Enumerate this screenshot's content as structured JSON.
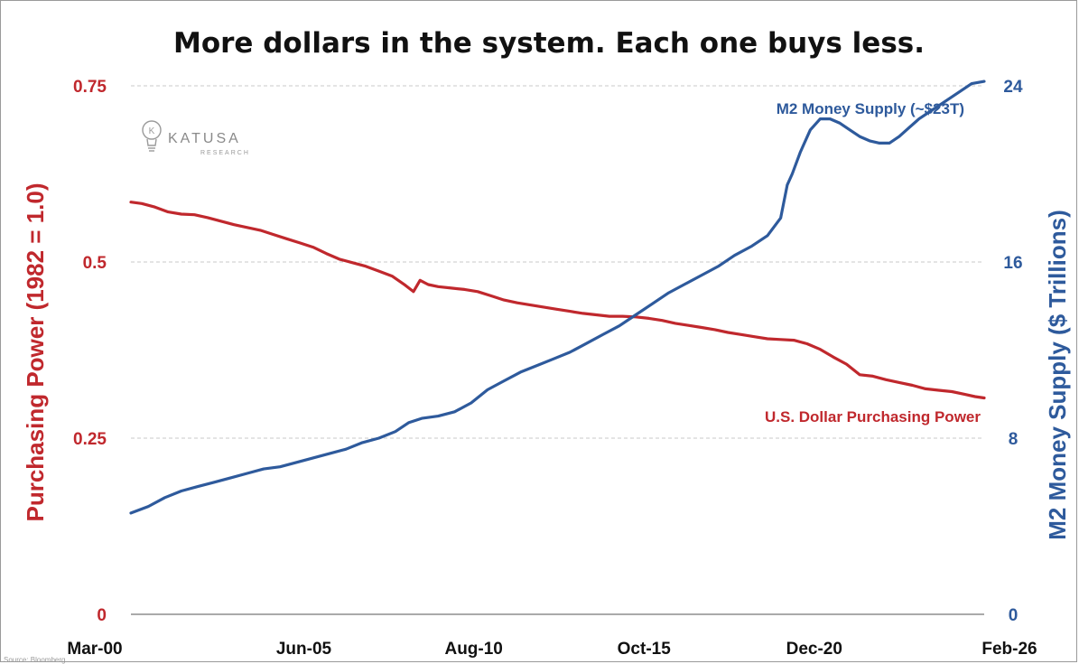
{
  "colors": {
    "purchasing_power": "#c0282d",
    "m2": "#2e5a9c",
    "grid": "#c8c8c8",
    "text": "#111111"
  },
  "logo": {
    "name": "KATUSA",
    "sub": "RESEARCH",
    "icon": "lightbulb-icon"
  },
  "source": "Source: Bloomberg",
  "chart_data": {
    "type": "line",
    "title": "More dollars in the system. Each one buys less.",
    "xlabel": "",
    "ylabel_left": "Purchasing Power (1982 = 1.0)",
    "ylabel_right": "M2 Money Supply ($ Trillions)",
    "x_ticks": [
      "Mar-00",
      "Jun-05",
      "Aug-10",
      "Oct-15",
      "Dec-20",
      "Feb-26"
    ],
    "x_range": [
      2000.17,
      2026.08
    ],
    "x_tick_positions": [
      2000.17,
      2005.42,
      2010.58,
      2015.75,
      2020.92,
      2026.08
    ],
    "y_left_ticks": [
      "0",
      "0.25",
      "0.5",
      "0.75"
    ],
    "y_left_range": [
      0,
      0.75
    ],
    "y_right_ticks": [
      "0",
      "8",
      "16",
      "24"
    ],
    "y_right_range": [
      0,
      24
    ],
    "grid": "horizontal dashed",
    "series": [
      {
        "name": "U.S. Dollar Purchasing Power",
        "axis": "left",
        "x": [
          2000.17,
          2000.5,
          2000.9,
          2001.3,
          2001.7,
          2002.1,
          2002.5,
          2002.9,
          2003.3,
          2003.7,
          2004.1,
          2004.5,
          2004.9,
          2005.3,
          2005.7,
          2006.1,
          2006.5,
          2006.9,
          2007.3,
          2007.7,
          2008.1,
          2008.5,
          2008.75,
          2008.95,
          2009.2,
          2009.5,
          2009.9,
          2010.3,
          2010.7,
          2011.1,
          2011.5,
          2011.9,
          2012.3,
          2012.7,
          2013.1,
          2013.5,
          2013.9,
          2014.3,
          2014.7,
          2015.1,
          2015.5,
          2015.9,
          2016.3,
          2016.7,
          2017.1,
          2017.5,
          2017.9,
          2018.3,
          2018.7,
          2019.1,
          2019.5,
          2019.9,
          2020.3,
          2020.7,
          2021.1,
          2021.5,
          2021.9,
          2022.3,
          2022.7,
          2023.1,
          2023.5,
          2023.9,
          2024.3,
          2024.7,
          2025.1,
          2025.5,
          2025.8,
          2026.08
        ],
        "values": [
          0.585,
          0.583,
          0.578,
          0.571,
          0.568,
          0.567,
          0.563,
          0.558,
          0.553,
          0.549,
          0.545,
          0.539,
          0.533,
          0.527,
          0.521,
          0.512,
          0.504,
          0.499,
          0.494,
          0.487,
          0.48,
          0.467,
          0.458,
          0.474,
          0.468,
          0.465,
          0.463,
          0.461,
          0.458,
          0.452,
          0.446,
          0.442,
          0.439,
          0.436,
          0.433,
          0.43,
          0.427,
          0.425,
          0.423,
          0.423,
          0.422,
          0.42,
          0.417,
          0.413,
          0.41,
          0.407,
          0.404,
          0.4,
          0.397,
          0.394,
          0.391,
          0.39,
          0.389,
          0.384,
          0.376,
          0.365,
          0.355,
          0.34,
          0.338,
          0.333,
          0.329,
          0.325,
          0.32,
          0.318,
          0.316,
          0.312,
          0.309,
          0.307
        ]
      },
      {
        "name": "M2 Money Supply (~$23T)",
        "axis": "right",
        "x": [
          2000.17,
          2000.7,
          2001.2,
          2001.7,
          2002.2,
          2002.7,
          2003.2,
          2003.7,
          2004.2,
          2004.7,
          2005.2,
          2005.7,
          2006.2,
          2006.7,
          2007.2,
          2007.7,
          2008.2,
          2008.6,
          2009.0,
          2009.5,
          2010.0,
          2010.5,
          2011.0,
          2011.5,
          2012.0,
          2012.5,
          2013.0,
          2013.5,
          2014.0,
          2014.5,
          2015.0,
          2015.5,
          2016.0,
          2016.5,
          2017.0,
          2017.5,
          2018.0,
          2018.5,
          2019.0,
          2019.5,
          2019.9,
          2020.1,
          2020.25,
          2020.5,
          2020.8,
          2021.1,
          2021.4,
          2021.7,
          2022.0,
          2022.3,
          2022.6,
          2022.9,
          2023.2,
          2023.5,
          2023.8,
          2024.1,
          2024.5,
          2024.9,
          2025.3,
          2025.7,
          2026.08
        ],
        "values": [
          4.6,
          4.9,
          5.3,
          5.6,
          5.8,
          6.0,
          6.2,
          6.4,
          6.6,
          6.7,
          6.9,
          7.1,
          7.3,
          7.5,
          7.8,
          8.0,
          8.3,
          8.7,
          8.9,
          9.0,
          9.2,
          9.6,
          10.2,
          10.6,
          11.0,
          11.3,
          11.6,
          11.9,
          12.3,
          12.7,
          13.1,
          13.6,
          14.1,
          14.6,
          15.0,
          15.4,
          15.8,
          16.3,
          16.7,
          17.2,
          18.0,
          19.5,
          20.0,
          21.0,
          22.0,
          22.5,
          22.5,
          22.3,
          22.0,
          21.7,
          21.5,
          21.4,
          21.4,
          21.7,
          22.1,
          22.5,
          22.9,
          23.3,
          23.7,
          24.1,
          24.2
        ]
      }
    ]
  }
}
